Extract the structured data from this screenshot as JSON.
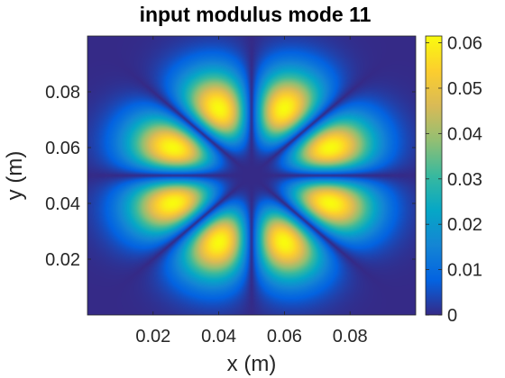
{
  "chart_data": {
    "type": "heatmap",
    "title": "input modulus mode 11",
    "xlabel": "x (m)",
    "ylabel": "y (m)",
    "xlim": [
      0,
      0.1
    ],
    "ylim": [
      0,
      0.1
    ],
    "x_ticks": [
      "0.02",
      "0.04",
      "0.06",
      "0.08"
    ],
    "x_tick_values": [
      0.02,
      0.04,
      0.06,
      0.08
    ],
    "y_ticks": [
      "0.02",
      "0.04",
      "0.06",
      "0.08"
    ],
    "y_tick_values": [
      0.02,
      0.04,
      0.06,
      0.08
    ],
    "colorbar": {
      "colormap": "parula",
      "range": [
        0,
        0.0615
      ],
      "ticks": [
        "0",
        "0.01",
        "0.02",
        "0.03",
        "0.04",
        "0.05",
        "0.06"
      ],
      "tick_values": [
        0,
        0.01,
        0.02,
        0.03,
        0.04,
        0.05,
        0.06
      ]
    },
    "field": {
      "center": [
        0.05,
        0.05
      ],
      "lobes": 8,
      "peak_radius": 0.026,
      "peak_value": 0.0615,
      "lobe_angles_deg": [
        22.5,
        67.5,
        112.5,
        157.5,
        202.5,
        247.5,
        292.5,
        337.5
      ]
    },
    "grid": false
  }
}
